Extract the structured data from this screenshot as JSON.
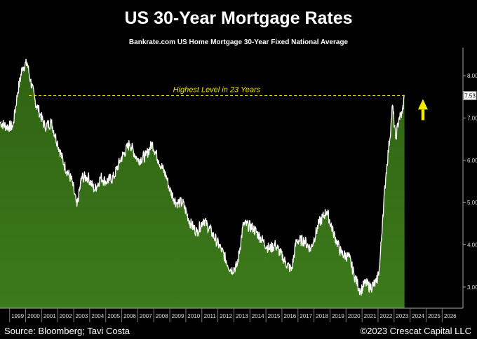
{
  "title": "US 30-Year Mortgage Rates",
  "subtitle": "Bankrate.com US Home Mortgage 30-Year Fixed National Average",
  "footer": {
    "source": "Source: Bloomberg; Tavi Costa",
    "copyright": "©2023 Crescat Capital LLC"
  },
  "colors": {
    "area": "#3d7a1c",
    "line": "#ffffff",
    "annotation": "#f0e000",
    "arrow": "#f2e800",
    "background": "#000000"
  },
  "chart_data": {
    "type": "area",
    "x": [
      1998.4,
      1998.8,
      1999.2,
      1999.5,
      1999.8,
      2000.1,
      2000.3,
      2000.6,
      2000.9,
      2001.2,
      2001.6,
      2002.0,
      2002.4,
      2002.9,
      2003.2,
      2003.5,
      2003.9,
      2004.3,
      2004.7,
      2005.0,
      2005.5,
      2005.9,
      2006.5,
      2007.0,
      2007.5,
      2007.9,
      2008.3,
      2008.8,
      2009.0,
      2009.4,
      2009.8,
      2010.3,
      2010.7,
      2011.1,
      2011.6,
      2012.2,
      2012.8,
      2013.2,
      2013.6,
      2014.2,
      2014.8,
      2015.2,
      2015.6,
      2016.2,
      2016.6,
      2016.9,
      2017.4,
      2017.8,
      2018.3,
      2018.8,
      2019.2,
      2019.7,
      2020.2,
      2020.5,
      2020.9,
      2021.2,
      2021.5,
      2021.9,
      2022.1,
      2022.3,
      2022.5,
      2022.8,
      2022.9,
      2023.1,
      2023.3,
      2023.5,
      2023.65
    ],
    "values": [
      6.9,
      6.8,
      6.8,
      7.6,
      8.2,
      8.3,
      7.9,
      7.4,
      7.1,
      6.8,
      6.9,
      6.4,
      5.9,
      5.5,
      4.9,
      5.6,
      5.6,
      5.3,
      5.6,
      5.5,
      5.6,
      6.0,
      6.4,
      6.0,
      6.1,
      6.4,
      6.0,
      5.6,
      5.3,
      5.0,
      5.0,
      4.5,
      4.3,
      4.6,
      4.3,
      3.9,
      3.4,
      3.5,
      4.5,
      4.4,
      4.1,
      3.9,
      4.0,
      3.6,
      3.4,
      4.1,
      4.1,
      3.9,
      4.5,
      4.8,
      4.3,
      3.8,
      3.7,
      3.3,
      2.9,
      3.1,
      3.0,
      3.1,
      3.5,
      4.7,
      5.7,
      6.8,
      7.3,
      6.5,
      7.0,
      7.1,
      7.53
    ],
    "last_value_label": "7.53",
    "annotation": "Highest Level in 23 Years",
    "annotation_level": 7.53,
    "ylim": [
      2.5,
      8.5
    ],
    "yticks": [
      "3.00",
      "4.00",
      "5.00",
      "6.00",
      "7.00",
      "8.00"
    ],
    "xlim": [
      1998.4,
      2027.3
    ],
    "xticks": [
      "1999",
      "2000",
      "2001",
      "2002",
      "2003",
      "2004",
      "2005",
      "2006",
      "2007",
      "2008",
      "2009",
      "2010",
      "2011",
      "2012",
      "2013",
      "2014",
      "2015",
      "2016",
      "2017",
      "2018",
      "2019",
      "2020",
      "2021",
      "2022",
      "2023",
      "2024",
      "2025",
      "2026"
    ],
    "grid": false,
    "legend": "none"
  }
}
